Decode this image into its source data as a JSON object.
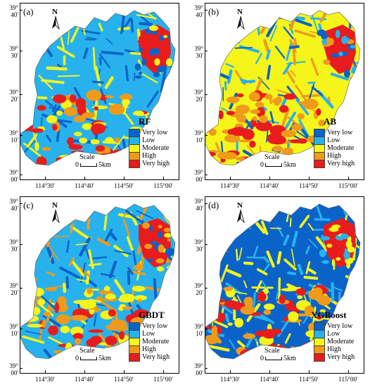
{
  "colors": {
    "very_low": "#0a63c9",
    "low": "#27b2ee",
    "moderate": "#f5f51a",
    "high": "#f09a1a",
    "very_high": "#e81c1c"
  },
  "legend": [
    "Very low",
    "Low",
    "Moderate",
    "High",
    "Very high"
  ],
  "scale": {
    "label": "Scale",
    "zero": "0",
    "dist": "5km"
  },
  "north": "N",
  "lat_labels": [
    {
      "deg": "39°",
      "min": "40'"
    },
    {
      "deg": "39°",
      "min": "30'"
    },
    {
      "deg": "39°",
      "min": "20'"
    },
    {
      "deg": "39°",
      "min": "10'"
    },
    {
      "deg": "39°",
      "min": "00'"
    }
  ],
  "lon_labels": [
    "114°30'",
    "114°40'",
    "114°50'",
    "115°00'"
  ],
  "panels": [
    {
      "id": "a",
      "label": "(a)",
      "model": "RF"
    },
    {
      "id": "b",
      "label": "(b)",
      "model": "AB"
    },
    {
      "id": "c",
      "label": "(c)",
      "model": "GBDT"
    },
    {
      "id": "d",
      "label": "(d)",
      "model": "XGBoost"
    }
  ]
}
